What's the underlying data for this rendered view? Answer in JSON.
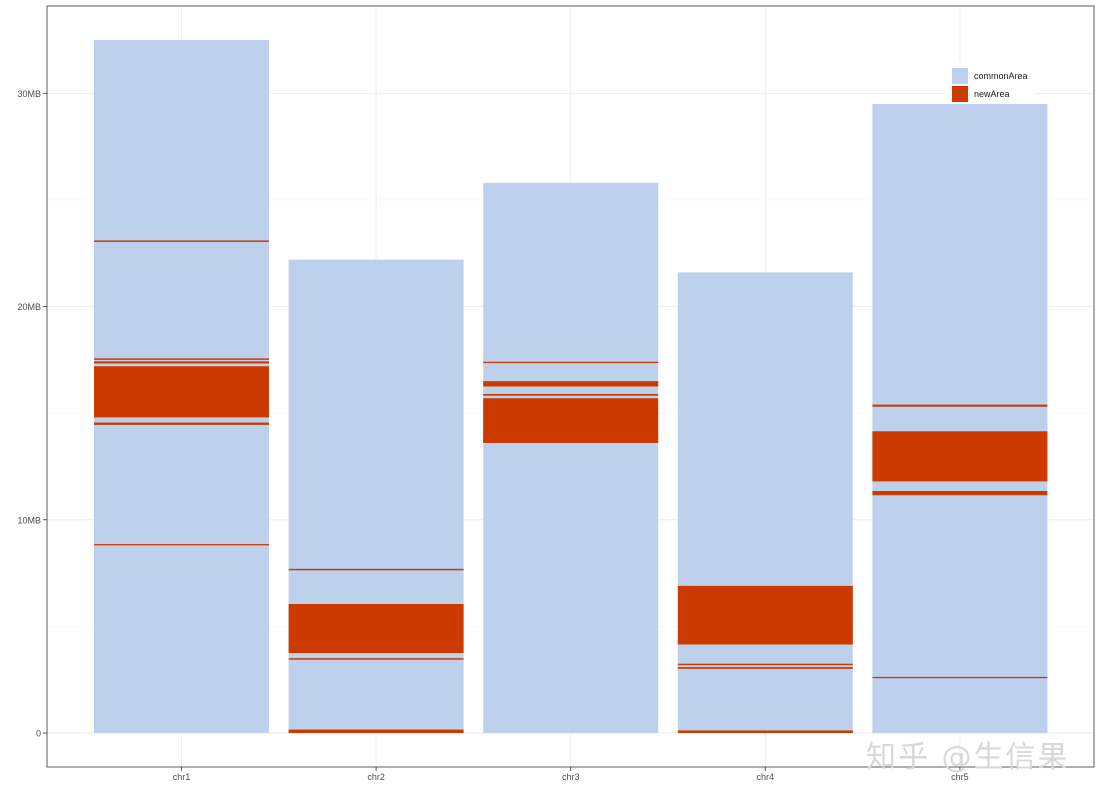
{
  "chart_data": {
    "type": "bar",
    "stacked": true,
    "title": "",
    "xlabel": "",
    "ylabel": "",
    "categories": [
      "chr1",
      "chr2",
      "chr3",
      "chr4",
      "chr5"
    ],
    "ylim": [
      0,
      32500000
    ],
    "yticks": [
      {
        "value": 0,
        "label": "0"
      },
      {
        "value": 10000000,
        "label": "10MB"
      },
      {
        "value": 20000000,
        "label": "20MB"
      },
      {
        "value": 30000000,
        "label": "30MB"
      }
    ],
    "grid": true,
    "legend_position": "top-right",
    "series": [
      {
        "name": "commonArea",
        "color": "#bdd1ed"
      },
      {
        "name": "newArea",
        "color": "#cc3a00"
      }
    ],
    "chromosomes": [
      {
        "name": "chr1",
        "length": 32500000,
        "newArea": [
          [
            8800000,
            8860000
          ],
          [
            14450000,
            14560000
          ],
          [
            14800000,
            17200000
          ],
          [
            17330000,
            17430000
          ],
          [
            17500000,
            17570000
          ],
          [
            23030000,
            23100000
          ]
        ]
      },
      {
        "name": "chr2",
        "length": 22200000,
        "newArea": [
          [
            0,
            160000
          ],
          [
            3440000,
            3510000
          ],
          [
            3750000,
            6050000
          ],
          [
            7630000,
            7700000
          ]
        ]
      },
      {
        "name": "chr3",
        "length": 25800000,
        "newArea": [
          [
            13600000,
            15700000
          ],
          [
            15820000,
            15900000
          ],
          [
            16250000,
            16500000
          ],
          [
            17350000,
            17410000
          ]
        ]
      },
      {
        "name": "chr4",
        "length": 21600000,
        "newArea": [
          [
            0,
            120000
          ],
          [
            3010000,
            3090000
          ],
          [
            3180000,
            3250000
          ],
          [
            4150000,
            6900000
          ]
        ]
      },
      {
        "name": "chr5",
        "length": 29500000,
        "newArea": [
          [
            2570000,
            2630000
          ],
          [
            11150000,
            11350000
          ],
          [
            11800000,
            14150000
          ],
          [
            15300000,
            15400000
          ]
        ]
      }
    ]
  },
  "watermark": {
    "text": "知乎 @生信果"
  }
}
